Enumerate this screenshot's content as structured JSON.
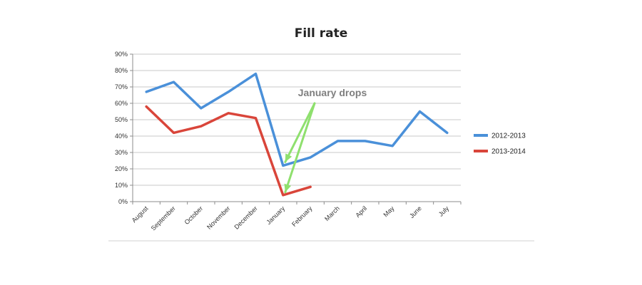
{
  "chart_data": {
    "type": "line",
    "title": "Fill rate",
    "xlabel": "",
    "ylabel": "",
    "categories": [
      "August",
      "September",
      "October",
      "November",
      "December",
      "January",
      "February",
      "March",
      "April",
      "May",
      "June",
      "July"
    ],
    "y_ticks": [
      "0%",
      "10%",
      "20%",
      "30%",
      "40%",
      "50%",
      "60%",
      "70%",
      "80%",
      "90%"
    ],
    "ylim": [
      0,
      90
    ],
    "grid": true,
    "legend_position": "right",
    "series": [
      {
        "name": "2012-2013",
        "color": "#4a90d9",
        "values": [
          67,
          73,
          57,
          67,
          78,
          22,
          27,
          37,
          37,
          34,
          55,
          42
        ]
      },
      {
        "name": "2013-2014",
        "color": "#d9453a",
        "values": [
          58,
          42,
          46,
          54,
          51,
          4,
          9,
          null,
          null,
          null,
          null,
          null
        ]
      }
    ],
    "annotations": [
      {
        "text": "January drops",
        "color": "#8fe06e"
      }
    ]
  }
}
